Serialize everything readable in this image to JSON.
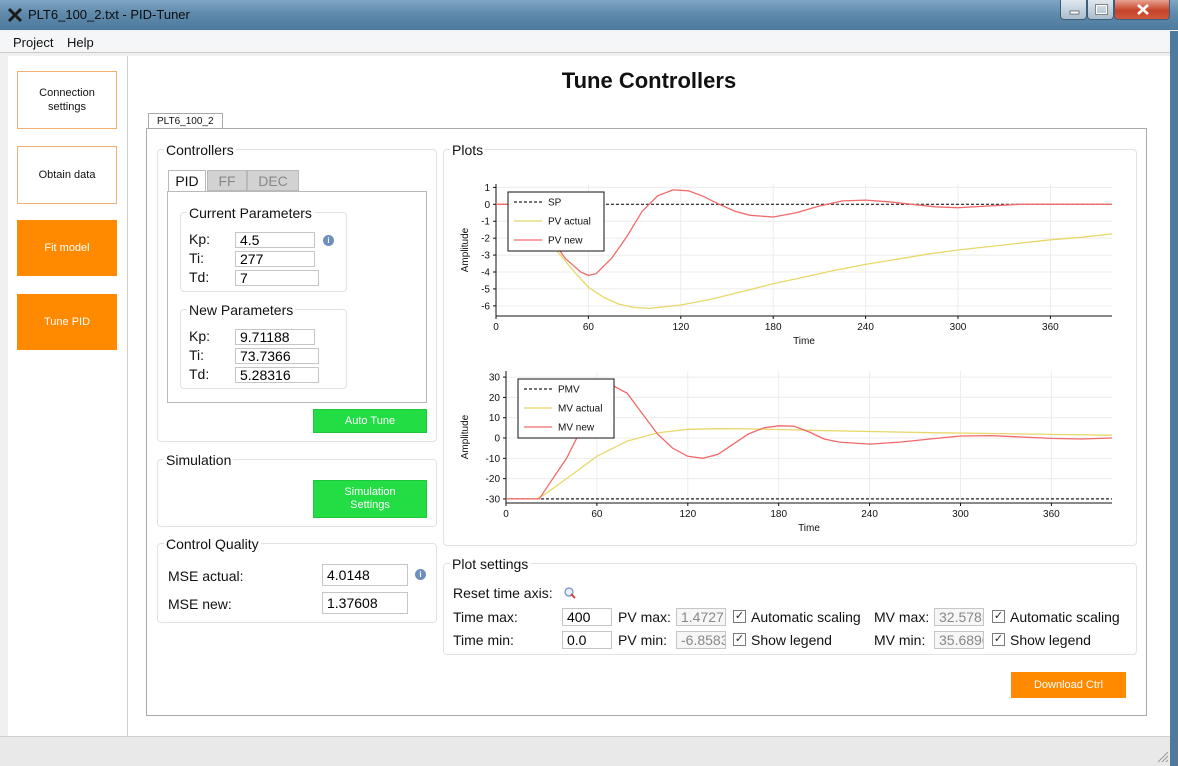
{
  "window": {
    "title": "PLT6_100_2.txt - PID-Tuner"
  },
  "menu": [
    "Project",
    "Help"
  ],
  "sidebar": [
    {
      "label": "Connection settings",
      "active": false
    },
    {
      "label": "Obtain data",
      "active": false
    },
    {
      "label": "Fit model",
      "active": true
    },
    {
      "label": "Tune PID",
      "active": true
    }
  ],
  "page": {
    "title": "Tune Controllers",
    "tab": "PLT6_100_2"
  },
  "controllers": {
    "title": "Controllers",
    "tabs": [
      "PID",
      "FF",
      "DEC"
    ],
    "current": {
      "title": "Current Parameters",
      "kp_label": "Kp:",
      "ti_label": "Ti:",
      "td_label": "Td:",
      "kp": "4.5",
      "ti": "277",
      "td": "7"
    },
    "new": {
      "title": "New Parameters",
      "kp_label": "Kp:",
      "ti_label": "Ti:",
      "td_label": "Td:",
      "kp": "9.71188",
      "ti": "73.7366",
      "td": "5.28316"
    },
    "auto_tune": "Auto Tune"
  },
  "simulation": {
    "title": "Simulation",
    "button": "Simulation Settings"
  },
  "quality": {
    "title": "Control Quality",
    "mse_actual_label": "MSE actual:",
    "mse_actual": "4.0148",
    "mse_new_label": "MSE new:",
    "mse_new": "1.37608"
  },
  "plots": {
    "title": "Plots"
  },
  "plot_settings": {
    "title": "Plot settings",
    "reset_label": "Reset time axis:",
    "time_max_label": "Time max:",
    "time_max": "400",
    "time_min_label": "Time min:",
    "time_min": "0.0",
    "pv_max_label": "PV max:",
    "pv_max": "1.4727",
    "pv_min_label": "PV min:",
    "pv_min": "-6.8583",
    "mv_max_label": "MV max:",
    "mv_max": "32.5785",
    "mv_min_label": "MV min:",
    "mv_min": "35.6890",
    "auto_scaling": "Automatic scaling",
    "show_legend": "Show legend"
  },
  "download": "Download Ctrl",
  "chart_data": [
    {
      "type": "line",
      "xlabel": "Time",
      "ylabel": "Amplitude",
      "xlim": [
        0,
        400
      ],
      "ylim": [
        -6.6,
        1.2
      ],
      "xticks": [
        0,
        60,
        120,
        180,
        240,
        300,
        360
      ],
      "yticks": [
        1,
        0,
        -1,
        -2,
        -3,
        -4,
        -5,
        -6
      ],
      "grid": true,
      "legend": "top-left",
      "series": [
        {
          "name": "SP",
          "color": "#222222",
          "dashed": true,
          "x": [
            0,
            400
          ],
          "y": [
            0,
            0
          ]
        },
        {
          "name": "PV actual",
          "color": "#e8d86a",
          "x": [
            0,
            10,
            20,
            30,
            40,
            50,
            60,
            70,
            80,
            90,
            100,
            110,
            120,
            140,
            160,
            180,
            200,
            220,
            240,
            260,
            280,
            300,
            320,
            340,
            360,
            380,
            400
          ],
          "y": [
            0,
            0,
            -0.3,
            -1.4,
            -2.8,
            -3.9,
            -4.9,
            -5.5,
            -5.9,
            -6.1,
            -6.15,
            -6.05,
            -5.95,
            -5.6,
            -5.15,
            -4.7,
            -4.3,
            -3.9,
            -3.55,
            -3.25,
            -2.95,
            -2.7,
            -2.5,
            -2.3,
            -2.1,
            -1.95,
            -1.75
          ]
        },
        {
          "name": "PV new",
          "color": "#f06a6a",
          "x": [
            0,
            15,
            25,
            35,
            45,
            55,
            60,
            65,
            75,
            85,
            95,
            105,
            115,
            125,
            135,
            145,
            155,
            165,
            180,
            195,
            210,
            225,
            240,
            255,
            270,
            285,
            300,
            320,
            340,
            360,
            380,
            400
          ],
          "y": [
            0,
            0,
            -0.6,
            -1.9,
            -3.2,
            -4.0,
            -4.2,
            -4.1,
            -3.2,
            -1.9,
            -0.4,
            0.5,
            0.85,
            0.8,
            0.45,
            0.0,
            -0.4,
            -0.65,
            -0.75,
            -0.5,
            -0.1,
            0.2,
            0.25,
            0.15,
            0.0,
            -0.15,
            -0.2,
            -0.1,
            0.0,
            0.0,
            0.0,
            0.0
          ]
        }
      ]
    },
    {
      "type": "line",
      "xlabel": "Time",
      "ylabel": "Amplitude",
      "xlim": [
        0,
        400
      ],
      "ylim": [
        -32,
        33
      ],
      "xticks": [
        0,
        60,
        120,
        180,
        240,
        300,
        360
      ],
      "yticks": [
        30,
        20,
        10,
        0,
        -10,
        -20,
        -30
      ],
      "grid": true,
      "legend": "top-left",
      "series": [
        {
          "name": "PMV",
          "color": "#222222",
          "dashed": true,
          "x": [
            0,
            400
          ],
          "y": [
            -30,
            -30
          ]
        },
        {
          "name": "MV actual",
          "color": "#e8d86a",
          "x": [
            0,
            20,
            25,
            40,
            60,
            80,
            100,
            120,
            140,
            160,
            180,
            200,
            240,
            280,
            320,
            360,
            400
          ],
          "y": [
            -30,
            -30,
            -28,
            -20,
            -9,
            -1.5,
            2.5,
            4.3,
            4.6,
            4.5,
            4.2,
            3.8,
            3.2,
            2.6,
            2.2,
            1.8,
            1.4
          ]
        },
        {
          "name": "MV new",
          "color": "#f06a6a",
          "x": [
            0,
            22,
            30,
            40,
            50,
            60,
            70,
            80,
            90,
            100,
            110,
            120,
            130,
            140,
            150,
            160,
            170,
            180,
            190,
            200,
            210,
            220,
            240,
            260,
            280,
            300,
            320,
            340,
            360,
            380,
            400
          ],
          "y": [
            -30,
            -30,
            -21,
            -10,
            5,
            20,
            26,
            22,
            12,
            2,
            -5,
            -9,
            -10,
            -8,
            -3,
            2,
            5,
            6,
            5.8,
            3,
            -0.5,
            -2,
            -3,
            -2,
            -0.5,
            1,
            1.2,
            0.5,
            -0.2,
            -0.5,
            0
          ]
        }
      ]
    }
  ]
}
